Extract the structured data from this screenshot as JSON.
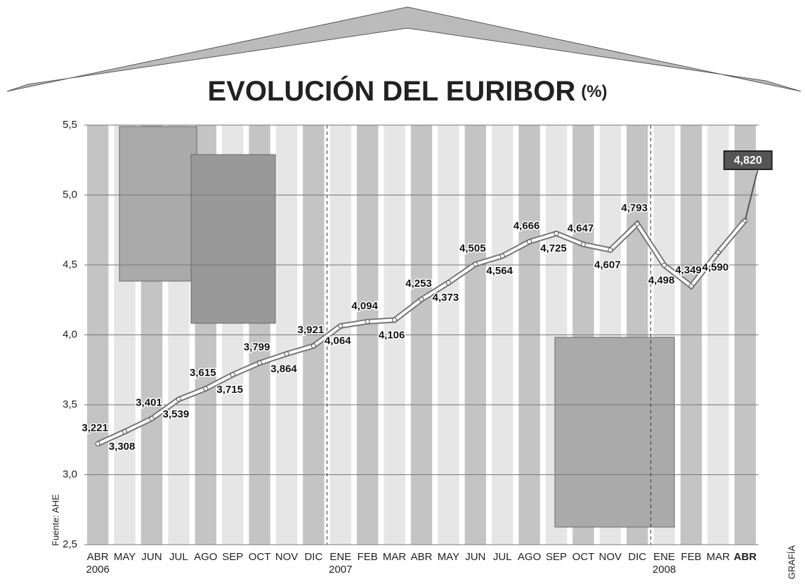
{
  "chart_data": {
    "type": "line",
    "title": "EVOLUCIÓN DEL EURIBOR",
    "unit": "(%)",
    "source": "Fuente: AHE",
    "credit": "GRAFÍA",
    "categories": [
      "ABR",
      "MAY",
      "JUN",
      "JUL",
      "AGO",
      "SEP",
      "OCT",
      "NOV",
      "DIC",
      "ENE",
      "FEB",
      "MAR",
      "ABR",
      "MAY",
      "JUN",
      "JUL",
      "AGO",
      "SEP",
      "OCT",
      "NOV",
      "DIC",
      "ENE",
      "FEB",
      "MAR",
      "ABR"
    ],
    "category_years": [
      "2006",
      null,
      null,
      null,
      null,
      null,
      null,
      null,
      null,
      "2007",
      null,
      null,
      null,
      null,
      null,
      null,
      null,
      null,
      null,
      null,
      null,
      "2008",
      null,
      null,
      null
    ],
    "values": [
      3.221,
      3.308,
      3.401,
      3.539,
      3.615,
      3.715,
      3.799,
      3.864,
      3.921,
      4.064,
      4.094,
      4.106,
      4.253,
      4.373,
      4.505,
      4.564,
      4.666,
      4.725,
      4.647,
      4.607,
      4.793,
      4.498,
      4.349,
      4.59,
      4.82
    ],
    "value_labels": [
      "3,221",
      "3,308",
      "3,401",
      "3,539",
      "3,615",
      "3,715",
      "3,799",
      "3,864",
      "3,921",
      "4,064",
      "4,094",
      "4,106",
      "4,253",
      "4,373",
      "4,505",
      "4,564",
      "4,666",
      "4,725",
      "4,647",
      "4,607",
      "4,793",
      "4,498",
      "4,349",
      "4,590",
      "4,820"
    ],
    "color": "#ffffff",
    "ylim": [
      2.5,
      5.5
    ],
    "yticks": [
      {
        "value": 2.5,
        "label": "2,5"
      },
      {
        "value": 3.0,
        "label": "3,0"
      },
      {
        "value": 3.5,
        "label": "3,5"
      },
      {
        "value": 4.0,
        "label": "4,0"
      },
      {
        "value": 4.5,
        "label": "4,5"
      },
      {
        "value": 5.0,
        "label": "5,0"
      },
      {
        "value": 5.5,
        "label": "5,5"
      }
    ],
    "grid": true
  }
}
